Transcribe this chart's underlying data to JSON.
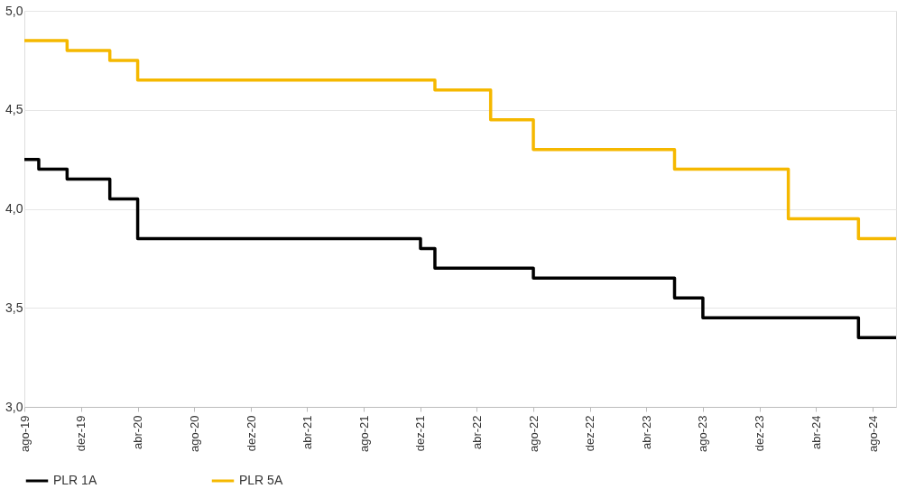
{
  "chart_data": {
    "type": "step",
    "series": [
      {
        "name": "PLR 1A",
        "color": "#000000",
        "x": [
          "2019-08-01",
          "2019-09-01",
          "2019-11-01",
          "2020-02-01",
          "2020-04-01",
          "2021-12-01",
          "2022-01-01",
          "2022-08-01",
          "2023-06-01",
          "2023-08-01",
          "2024-07-01",
          "2024-09-20"
        ],
        "values": [
          4.25,
          4.2,
          4.15,
          4.05,
          3.85,
          3.8,
          3.7,
          3.65,
          3.55,
          3.45,
          3.35,
          3.35
        ]
      },
      {
        "name": "PLR 5A",
        "color": "#f5b800",
        "x": [
          "2019-08-01",
          "2019-11-01",
          "2020-02-01",
          "2020-04-01",
          "2022-01-01",
          "2022-05-01",
          "2022-08-01",
          "2023-06-01",
          "2024-02-01",
          "2024-07-01",
          "2024-09-20"
        ],
        "values": [
          4.85,
          4.8,
          4.75,
          4.65,
          4.6,
          4.45,
          4.3,
          4.2,
          3.95,
          3.85,
          3.85
        ]
      }
    ],
    "xlim": [
      "2019-08-01",
      "2024-09-20"
    ],
    "xticks": [
      {
        "value": "2019-08-01",
        "label": "ago-19"
      },
      {
        "value": "2019-12-01",
        "label": "dez-19"
      },
      {
        "value": "2020-04-01",
        "label": "abr-20"
      },
      {
        "value": "2020-08-01",
        "label": "ago-20"
      },
      {
        "value": "2020-12-01",
        "label": "dez-20"
      },
      {
        "value": "2021-04-01",
        "label": "abr-21"
      },
      {
        "value": "2021-08-01",
        "label": "ago-21"
      },
      {
        "value": "2021-12-01",
        "label": "dez-21"
      },
      {
        "value": "2022-04-01",
        "label": "abr-22"
      },
      {
        "value": "2022-08-01",
        "label": "ago-22"
      },
      {
        "value": "2022-12-01",
        "label": "dez-22"
      },
      {
        "value": "2023-04-01",
        "label": "abr-23"
      },
      {
        "value": "2023-08-01",
        "label": "ago-23"
      },
      {
        "value": "2023-12-01",
        "label": "dez-23"
      },
      {
        "value": "2024-04-01",
        "label": "abr-24"
      },
      {
        "value": "2024-08-01",
        "label": "ago-24"
      }
    ],
    "ylim": [
      3.0,
      5.0
    ],
    "yticks": [
      {
        "value": 3.0,
        "label": "3,0"
      },
      {
        "value": 3.5,
        "label": "3,5"
      },
      {
        "value": 4.0,
        "label": "4,0"
      },
      {
        "value": 4.5,
        "label": "4,5"
      },
      {
        "value": 5.0,
        "label": "5,0"
      }
    ],
    "grid": "y",
    "legend": "bottom",
    "line_style": "solid",
    "marker": "none"
  }
}
